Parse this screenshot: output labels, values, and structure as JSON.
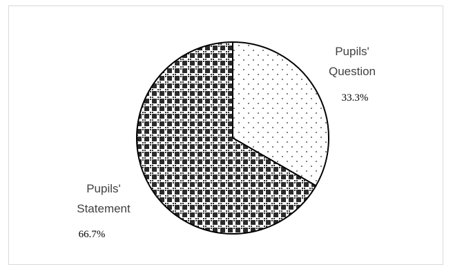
{
  "chart_data": {
    "type": "pie",
    "title": "",
    "slices": [
      {
        "label_line1": "Pupils'",
        "label_line2": "Question",
        "value": 33.3,
        "value_label": "33.3%",
        "pattern": "dots"
      },
      {
        "label_line1": "Pupils'",
        "label_line2": "Statement",
        "value": 66.7,
        "value_label": "66.7%",
        "pattern": "checker"
      }
    ],
    "legend": "none",
    "colors": {
      "outline": "#000000",
      "dots": "#555555",
      "checker_dark": "#2b2b2b"
    }
  }
}
